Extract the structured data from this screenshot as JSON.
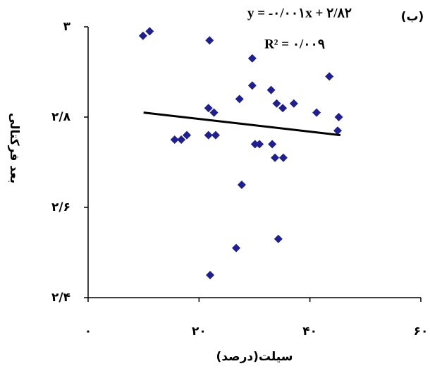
{
  "chart_data": {
    "type": "scatter",
    "x_label": "سیلت(درصد)",
    "y_label": "بعد فرکتالی",
    "panel_label": "(ب)",
    "equation": "y = -۰/۰۰۱x + ۲/۸۲",
    "r_squared": "R² = ۰/۰۰۹",
    "color": "#1f1f8f",
    "trendline_color": "#000000",
    "xlim": [
      0,
      60
    ],
    "xticks": [
      {
        "value": 0,
        "label": "۰"
      },
      {
        "value": 20,
        "label": "۲۰"
      },
      {
        "value": 40,
        "label": "۴۰"
      },
      {
        "value": 60,
        "label": "۶۰"
      }
    ],
    "ylim": [
      2.4,
      3
    ],
    "yticks": [
      {
        "value": 2.4,
        "label": "۲/۴"
      },
      {
        "value": 2.6,
        "label": "۲/۶"
      },
      {
        "value": 2.8,
        "label": "۲/۸"
      },
      {
        "value": 3,
        "label": "۳"
      }
    ],
    "x": [
      9.9,
      11.1,
      21.9,
      29.6,
      29.6,
      33.0,
      43.5,
      21.7,
      22.7,
      27.3,
      34.0,
      35.1,
      37.1,
      41.2,
      45.2,
      45.0,
      15.6,
      16.8,
      17.8,
      21.7,
      23.0,
      30.1,
      30.9,
      33.2,
      33.7,
      35.2,
      27.7,
      26.7,
      34.3,
      22.0
    ],
    "y": [
      2.98,
      2.99,
      2.97,
      2.93,
      2.87,
      2.86,
      2.89,
      2.82,
      2.81,
      2.84,
      2.83,
      2.82,
      2.83,
      2.81,
      2.8,
      2.77,
      2.75,
      2.75,
      2.76,
      2.76,
      2.76,
      2.74,
      2.74,
      2.74,
      2.71,
      2.71,
      2.65,
      2.51,
      2.53,
      2.45
    ],
    "trendline": {
      "x": [
        10,
        45.5
      ],
      "y": [
        2.81,
        2.76
      ]
    }
  }
}
